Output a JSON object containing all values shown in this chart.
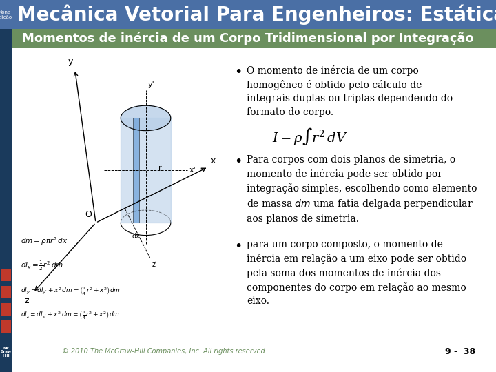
{
  "title": "Mecânica Vetorial Para Engenheiros: Estática",
  "subtitle": "Momentos de inércia de um Corpo Tridimensional por Integração",
  "title_bg": "#4a6fa5",
  "subtitle_bg": "#6b8f5e",
  "main_bg": "#ffffff",
  "title_color": "#ffffff",
  "subtitle_color": "#ffffff",
  "body_bg": "#ffffff",
  "left_nav_color": "#1a3a5c",
  "sidebar_colors": [
    "#1a3a5c",
    "#c0392b",
    "#c0392b",
    "#c0392b",
    "#c0392b"
  ],
  "bullet1": "O momento de inércia de um corpo\nhomogêneo é obtido pelo cálculo de\nintegrais duplas ou triplas dependendo do\nformato do corpo.",
  "formula": "$I = \\rho\\int r^2\\,dV$",
  "bullet2": "Para corpos com dois planos de simetria, o\nmomento de inércia pode ser obtido por\nintegração simples, escolhendo como elemento\nde massa $dm$ uma fatia delgada perpendicular\naos planos de simetria.",
  "bullet3": "para um corpo composto, o momento de\ninércia em relação a um eixo pode ser obtido\npela soma dos momentos de inércia dos\ncomponentes do corpo em relação ao mesmo\neixo.",
  "footer": "© 2010 The McGraw-Hill Companies, Inc. All rights reserved.",
  "page": "9 -  38",
  "footer_color": "#6b8f5e",
  "nona_edicao_color": "#ffffff",
  "nona_edicao_bg": "#6b8f5e"
}
